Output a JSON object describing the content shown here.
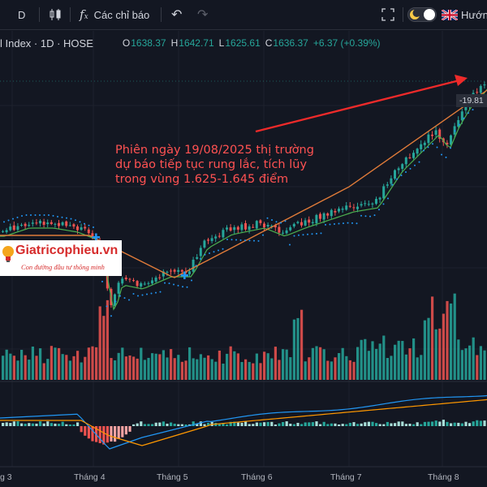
{
  "toolbar": {
    "interval": "D",
    "indicators_label": "Các chỉ báo",
    "language_label": "Hướn"
  },
  "legend": {
    "symbol": "l Index · 1D · HOSE",
    "open_label": "O",
    "open": "1638.37",
    "high_label": "H",
    "high": "1642.71",
    "low_label": "L",
    "low": "1625.61",
    "close_label": "C",
    "close": "1636.37",
    "change": "+6.37 (+0.39%)"
  },
  "annotation": {
    "line1": "Phiên ngày 19/08/2025 thị trường",
    "line2": "dự báo tiếp tục rung lắc, tích lũy",
    "line3": "trong vùng 1.625-1.645 điểm"
  },
  "logo": {
    "name": "Giatricophieu.vn",
    "slogan": "Con đường đầu tư thông minh"
  },
  "price_tag": "-19.81",
  "time_axis": [
    "g 3",
    "Tháng 4",
    "Tháng 5",
    "Tháng 6",
    "Tháng 7",
    "Tháng 8"
  ],
  "colors": {
    "up": "#26a69a",
    "down": "#ef5350",
    "annotation": "#ff5252",
    "ma_fast": "#4caf50",
    "ma_slow": "#e07b39",
    "sar": "#2196f3",
    "macd": "#2196f3",
    "signal": "#ff9800",
    "hist_up": "#26a69a",
    "hist_down": "#ef5350"
  },
  "icons": [
    "candles-icon",
    "function-icon",
    "undo-icon",
    "redo-icon",
    "fullscreen-icon",
    "theme-toggle-icon",
    "uk-flag-icon"
  ],
  "chart_data": {
    "type": "candlestick",
    "symbol": "l Index · 1D · HOSE",
    "x": [
      "g 3",
      "Tháng 4",
      "Tháng 5",
      "Tháng 6",
      "Tháng 7",
      "Tháng 8"
    ],
    "last_bar": {
      "open": 1638.37,
      "high": 1642.71,
      "low": 1625.61,
      "close": 1636.37,
      "change": 6.37,
      "change_pct": 0.39
    }
  }
}
